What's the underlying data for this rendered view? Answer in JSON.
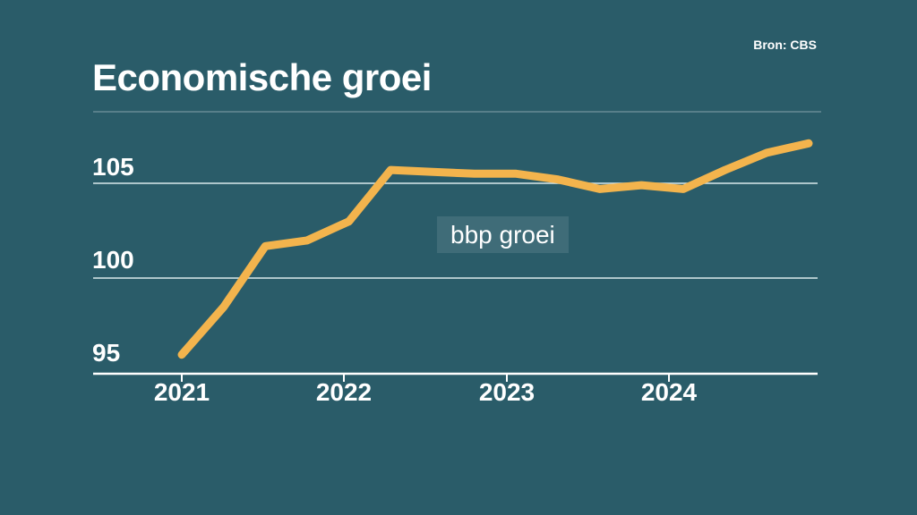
{
  "header": {
    "title": "Economische groei",
    "source": "Bron: CBS"
  },
  "chart_data": {
    "type": "line",
    "title": "Economische groei",
    "source": "Bron: CBS",
    "series": [
      {
        "name": "bbp groei",
        "x": [
          "2021 Q1",
          "2021 Q2",
          "2021 Q3",
          "2021 Q4",
          "2022 Q1",
          "2022 Q2",
          "2022 Q3",
          "2022 Q4",
          "2023 Q1",
          "2023 Q2",
          "2023 Q3",
          "2023 Q4",
          "2024 Q1",
          "2024 Q2",
          "2024 Q3",
          "2024 Q4"
        ],
        "values": [
          96.0,
          98.5,
          101.7,
          102.0,
          103.0,
          105.7,
          105.6,
          105.5,
          105.5,
          105.2,
          104.7,
          104.9,
          104.7,
          105.7,
          106.6,
          107.1
        ]
      }
    ],
    "xtick_labels": [
      "2021",
      "2022",
      "2023",
      "2024"
    ],
    "ytick_labels": [
      "105",
      "100",
      "95"
    ],
    "yticks": [
      95,
      100,
      105
    ],
    "ylim": [
      94,
      108
    ],
    "grid": "horizontal-only",
    "legend_position": "inline-label-center",
    "colors": {
      "background": "#2a5c69",
      "line": "#f3b44d",
      "text": "#ffffff",
      "grid": "#d9e9ec",
      "title_rule": "rgba(255,255,255,0.22)",
      "label_box": "rgba(255,255,255,0.10)"
    }
  }
}
